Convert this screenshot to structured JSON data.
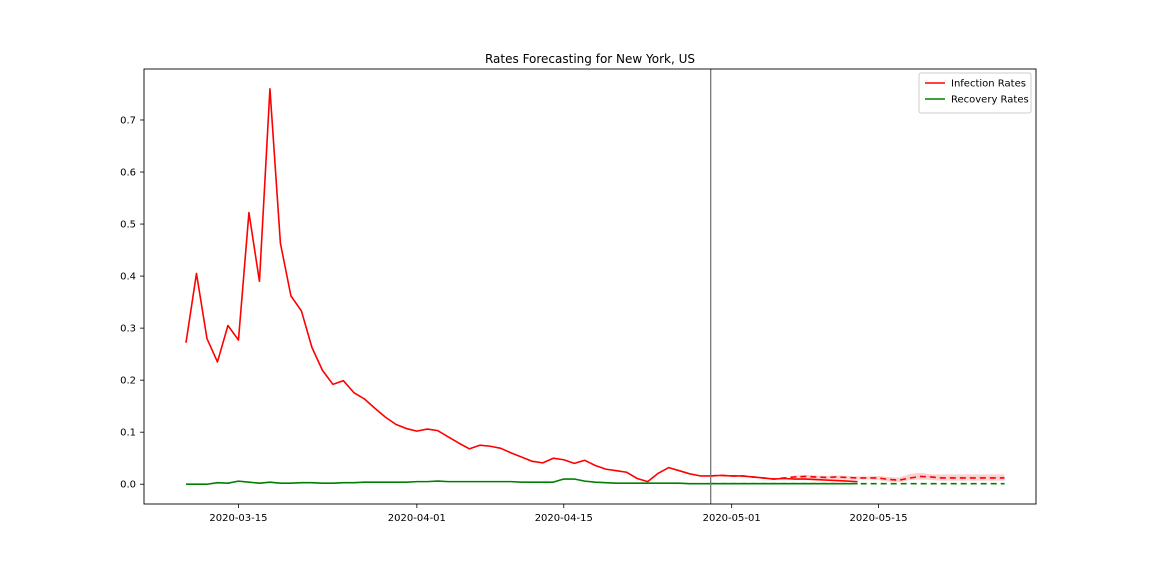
{
  "chart_data": {
    "type": "line",
    "title": "Rates Forecasting for New York, US",
    "xlabel": "",
    "ylabel": "",
    "x_start": "2020-03-10",
    "xlim": [
      "2020-03-06",
      "2020-05-30"
    ],
    "ylim": [
      -0.038,
      0.798
    ],
    "x_ticks": [
      "2020-03-15",
      "2020-04-01",
      "2020-04-15",
      "2020-05-01",
      "2020-05-15"
    ],
    "y_ticks": [
      0.0,
      0.1,
      0.2,
      0.3,
      0.4,
      0.5,
      0.6,
      0.7
    ],
    "y_tick_labels": [
      "0.0",
      "0.1",
      "0.2",
      "0.3",
      "0.4",
      "0.5",
      "0.6",
      "0.7"
    ],
    "forecast_divider_date": "2020-04-29",
    "grid": false,
    "legend_position": "top-right",
    "series": [
      {
        "name": "Infection Rates",
        "color": "#ff0000",
        "style": "solid",
        "values": [
          0.272,
          0.405,
          0.28,
          0.235,
          0.305,
          0.277,
          0.522,
          0.39,
          0.76,
          0.463,
          0.362,
          0.333,
          0.263,
          0.219,
          0.192,
          0.199,
          0.176,
          0.164,
          0.146,
          0.129,
          0.115,
          0.107,
          0.102,
          0.106,
          0.103,
          0.091,
          0.079,
          0.068,
          0.075,
          0.073,
          0.069,
          0.06,
          0.052,
          0.044,
          0.041,
          0.05,
          0.047,
          0.04,
          0.046,
          0.036,
          0.029,
          0.026,
          0.023,
          0.011,
          0.005,
          0.021,
          0.032,
          0.026,
          0.02,
          0.016,
          0.016,
          0.017,
          0.016,
          0.016,
          0.014,
          0.012,
          0.01,
          0.011,
          0.01,
          0.01,
          0.009,
          0.008,
          0.007,
          0.006,
          0.005
        ]
      },
      {
        "name": "Recovery Rates",
        "color": "#008000",
        "style": "solid",
        "values": [
          0.0,
          0.0,
          0.0,
          0.003,
          0.002,
          0.006,
          0.004,
          0.002,
          0.004,
          0.002,
          0.002,
          0.003,
          0.003,
          0.002,
          0.002,
          0.003,
          0.003,
          0.004,
          0.004,
          0.004,
          0.004,
          0.004,
          0.005,
          0.005,
          0.006,
          0.005,
          0.005,
          0.005,
          0.005,
          0.005,
          0.005,
          0.005,
          0.004,
          0.004,
          0.004,
          0.004,
          0.01,
          0.01,
          0.006,
          0.004,
          0.003,
          0.002,
          0.002,
          0.002,
          0.002,
          0.002,
          0.002,
          0.002,
          0.001,
          0.001,
          0.001,
          0.001,
          0.001,
          0.001,
          0.001,
          0.001,
          0.001,
          0.001,
          0.001,
          0.001,
          0.001,
          0.001,
          0.001,
          0.001,
          0.001
        ]
      },
      {
        "name": "",
        "color": "#ff0000",
        "style": "dashed",
        "start": "2020-04-29",
        "values": [
          0.016,
          0.017,
          0.016,
          0.016,
          0.014,
          0.012,
          0.01,
          0.012,
          0.014,
          0.015,
          0.014,
          0.013,
          0.014,
          0.013,
          0.012,
          0.012,
          0.012,
          0.009,
          0.008,
          0.012,
          0.015,
          0.014,
          0.012,
          0.012,
          0.012,
          0.012,
          0.012,
          0.012,
          0.012
        ]
      },
      {
        "name": "",
        "color": "#008000",
        "style": "dashed",
        "start": "2020-04-29",
        "values": [
          0.001,
          0.001,
          0.001,
          0.001,
          0.001,
          0.001,
          0.001,
          0.001,
          0.001,
          0.001,
          0.001,
          0.001,
          0.001,
          0.001,
          0.001,
          0.001,
          0.001,
          0.001,
          0.001,
          0.001,
          0.001,
          0.001,
          0.001,
          0.001,
          0.001,
          0.001,
          0.001,
          0.001,
          0.001
        ]
      }
    ],
    "confidence_band": {
      "color": "#ffb0b0",
      "start": "2020-05-07",
      "upper": [
        0.017,
        0.018,
        0.017,
        0.016,
        0.017,
        0.016,
        0.015,
        0.015,
        0.016,
        0.014,
        0.013,
        0.02,
        0.022,
        0.019,
        0.019,
        0.019,
        0.019,
        0.019,
        0.019,
        0.019,
        0.019
      ],
      "lower": [
        0.009,
        0.01,
        0.01,
        0.01,
        0.009,
        0.009,
        0.009,
        0.009,
        0.008,
        0.005,
        0.004,
        0.008,
        0.009,
        0.008,
        0.007,
        0.007,
        0.007,
        0.007,
        0.007,
        0.007,
        0.007
      ]
    }
  }
}
